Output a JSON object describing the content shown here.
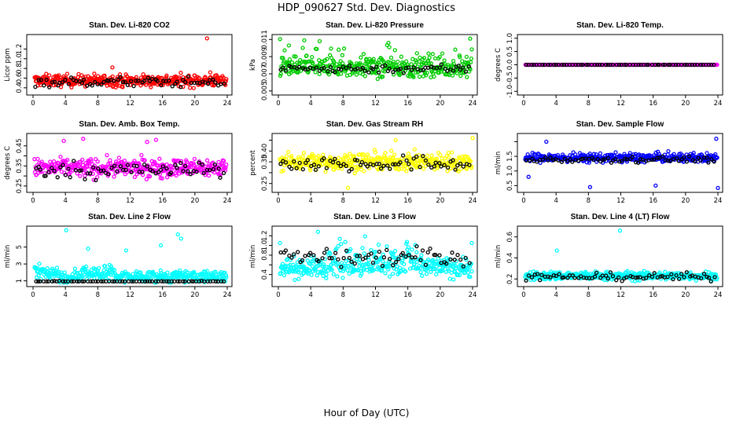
{
  "figure": {
    "title": "HDP_090627  Std. Dev. Diagnostics",
    "xlabel": "Hour of Day (UTC)"
  },
  "chart_data": [
    {
      "type": "scatter",
      "title": "Stan. Dev. Li-820 CO2",
      "ylabel": "Licor ppm",
      "color": "#ff0000",
      "xlim": [
        0,
        24
      ],
      "ylim": [
        0.3,
        1.45
      ],
      "xticks": [
        "0",
        "4",
        "8",
        "12",
        "16",
        "20",
        "24"
      ],
      "yticks": [
        0.4,
        0.6,
        0.8,
        1.0,
        1.2
      ],
      "ytick_labels": [
        "0.4",
        "0.6",
        "0.8",
        "1.0",
        "1.2"
      ],
      "base": 0.55,
      "spread": 0.12,
      "black_base": 0.52,
      "black_spread": 0.1,
      "outliers": [
        [
          21.5,
          1.42
        ],
        [
          9.8,
          0.82
        ],
        [
          21.9,
          0.72
        ]
      ]
    },
    {
      "type": "scatter",
      "title": "Stan. Dev. Li-820 Pressure",
      "ylabel": "kPa",
      "color": "#00cc00",
      "xlim": [
        0,
        24
      ],
      "ylim": [
        0.0048,
        0.0113
      ],
      "xticks": [
        "0",
        "4",
        "8",
        "12",
        "16",
        "20",
        "24"
      ],
      "yticks": [
        0.005,
        0.007,
        0.009,
        0.011
      ],
      "ytick_labels": [
        "0.005",
        "0.007",
        "0.009",
        "0.011"
      ],
      "base": 0.0077,
      "spread": 0.0011,
      "black_base": 0.0076,
      "black_spread": 0.0005,
      "outliers": [
        [
          3.2,
          0.0109
        ],
        [
          23.7,
          0.0111
        ],
        [
          5.1,
          0.0108
        ],
        [
          1.3,
          0.0103
        ],
        [
          13.6,
          0.0106
        ]
      ]
    },
    {
      "type": "scatter",
      "title": "Stan. Dev. Li-820 Temp.",
      "ylabel": "degrees C",
      "color": "#ff00ff",
      "xlim": [
        0,
        24
      ],
      "ylim": [
        -1.05,
        1.05
      ],
      "xticks": [
        "0",
        "4",
        "8",
        "12",
        "16",
        "20",
        "24"
      ],
      "yticks": [
        -1.0,
        -0.5,
        0.0,
        0.5,
        1.0
      ],
      "ytick_labels": [
        "-1.0",
        "-0.5",
        "0.0",
        "0.5",
        "1.0"
      ],
      "base": 0.0,
      "spread": 0.0,
      "black_base": 0.0,
      "black_spread": 0.0,
      "outliers": []
    },
    {
      "type": "scatter",
      "title": "Stan. Dev. Amb. Box Temp.",
      "ylabel": "degrees C",
      "color": "#ff00ff",
      "xlim": [
        0,
        24
      ],
      "ylim": [
        0.23,
        0.5
      ],
      "xticks": [
        "0",
        "4",
        "8",
        "12",
        "16",
        "20",
        "24"
      ],
      "yticks": [
        0.25,
        0.3,
        0.35,
        0.4,
        0.45
      ],
      "ytick_labels": [
        "0.25",
        "",
        "0.35",
        "",
        "0.45"
      ],
      "base": 0.34,
      "spread": 0.045,
      "black_base": 0.33,
      "black_spread": 0.04,
      "outliers": [
        [
          3.8,
          0.475
        ],
        [
          6.2,
          0.485
        ],
        [
          14.1,
          0.47
        ],
        [
          15.2,
          0.48
        ]
      ]
    },
    {
      "type": "scatter",
      "title": "Stan. Dev. Gas Stream RH",
      "ylabel": "percent",
      "color": "#ffff00",
      "xlim": [
        0,
        24
      ],
      "ylim": [
        0.22,
        0.47
      ],
      "xticks": [
        "0",
        "4",
        "8",
        "12",
        "16",
        "20",
        "24"
      ],
      "yticks": [
        0.25,
        0.3,
        0.35,
        0.4,
        0.45
      ],
      "ytick_labels": [
        "0.25",
        "",
        "0.35",
        "0.40",
        ""
      ],
      "base": 0.35,
      "spread": 0.04,
      "black_base": 0.34,
      "black_spread": 0.035,
      "outliers": [
        [
          8.6,
          0.23
        ],
        [
          24.0,
          0.46
        ],
        [
          14.5,
          0.45
        ]
      ]
    },
    {
      "type": "scatter",
      "title": "Stan. Dev. Sample Flow",
      "ylabel": "ml/min",
      "color": "#0000ff",
      "xlim": [
        0,
        24
      ],
      "ylim": [
        0.35,
        2.2
      ],
      "xticks": [
        "0",
        "4",
        "8",
        "12",
        "16",
        "20",
        "24"
      ],
      "yticks": [
        0.5,
        1.0,
        1.5,
        2.0
      ],
      "ytick_labels": [
        "0.5",
        "1.0",
        "1.5",
        ""
      ],
      "base": 1.45,
      "spread": 0.15,
      "black_base": 1.4,
      "black_spread": 0.1,
      "outliers": [
        [
          23.8,
          2.1
        ],
        [
          2.8,
          2.0
        ],
        [
          8.2,
          0.45
        ],
        [
          16.3,
          0.5
        ],
        [
          24.0,
          0.42
        ],
        [
          0.6,
          0.8
        ]
      ]
    },
    {
      "type": "scatter",
      "title": "Stan. Dev. Line 2 Flow",
      "ylabel": "ml/min",
      "color": "#00ffff",
      "xlim": [
        0,
        24
      ],
      "ylim": [
        0.6,
        7.2
      ],
      "xticks": [
        "0",
        "4",
        "8",
        "12",
        "16",
        "20",
        "24"
      ],
      "yticks": [
        1,
        3,
        5
      ],
      "ytick_labels": [
        "1",
        "3",
        "5"
      ],
      "base": 1.5,
      "spread": 0.7,
      "black_base": 0.85,
      "black_spread": 0.15,
      "outliers": [
        [
          4.1,
          7.0
        ],
        [
          17.9,
          6.5
        ],
        [
          18.3,
          6.0
        ],
        [
          15.8,
          5.2
        ],
        [
          6.8,
          4.8
        ],
        [
          11.5,
          4.6
        ]
      ]
    },
    {
      "type": "scatter",
      "title": "Stan. Dev. Line 3 Flow",
      "ylabel": "ml/min",
      "color": "#00ffff",
      "xlim": [
        0,
        24
      ],
      "ylim": [
        0.2,
        1.35
      ],
      "xticks": [
        "0",
        "4",
        "8",
        "12",
        "16",
        "20",
        "24"
      ],
      "yticks": [
        0.4,
        0.6,
        0.8,
        1.0,
        1.2
      ],
      "ytick_labels": [
        "0.4",
        "",
        "0.8",
        "1.0",
        "1.2"
      ],
      "base": 0.55,
      "spread": 0.2,
      "black_base": 0.75,
      "black_spread": 0.2,
      "outliers": [
        [
          0.2,
          1.05
        ],
        [
          4.9,
          1.28
        ],
        [
          23.9,
          1.05
        ]
      ]
    },
    {
      "type": "scatter",
      "title": "Stan. Dev. Line 4 (LT) Flow",
      "ylabel": "ml/min",
      "color": "#00ffff",
      "xlim": [
        0,
        24
      ],
      "ylim": [
        0.15,
        0.68
      ],
      "xticks": [
        "0",
        "4",
        "8",
        "12",
        "16",
        "20",
        "24"
      ],
      "yticks": [
        0.2,
        0.4,
        0.6
      ],
      "ytick_labels": [
        "0.2",
        "0.4",
        "0.6"
      ],
      "base": 0.23,
      "spread": 0.04,
      "black_base": 0.22,
      "black_spread": 0.035,
      "outliers": [
        [
          11.9,
          0.66
        ],
        [
          4.1,
          0.47
        ]
      ]
    }
  ]
}
